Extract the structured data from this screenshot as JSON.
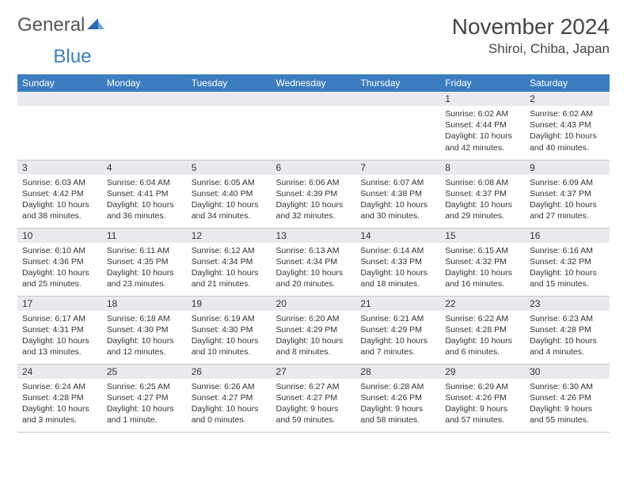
{
  "logo": {
    "text1": "General",
    "text2": "Blue"
  },
  "title": "November 2024",
  "location": "Shiroi, Chiba, Japan",
  "day_headers": [
    "Sunday",
    "Monday",
    "Tuesday",
    "Wednesday",
    "Thursday",
    "Friday",
    "Saturday"
  ],
  "colors": {
    "header_bg": "#3b7dbf",
    "header_fg": "#ffffff",
    "dayrow_bg": "#e8eaed",
    "border": "#c8c8c8",
    "text": "#333333"
  },
  "weeks": [
    [
      {
        "n": "",
        "lines": [
          "",
          "",
          "",
          ""
        ]
      },
      {
        "n": "",
        "lines": [
          "",
          "",
          "",
          ""
        ]
      },
      {
        "n": "",
        "lines": [
          "",
          "",
          "",
          ""
        ]
      },
      {
        "n": "",
        "lines": [
          "",
          "",
          "",
          ""
        ]
      },
      {
        "n": "",
        "lines": [
          "",
          "",
          "",
          ""
        ]
      },
      {
        "n": "1",
        "lines": [
          "Sunrise: 6:02 AM",
          "Sunset: 4:44 PM",
          "Daylight: 10 hours",
          "and 42 minutes."
        ]
      },
      {
        "n": "2",
        "lines": [
          "Sunrise: 6:02 AM",
          "Sunset: 4:43 PM",
          "Daylight: 10 hours",
          "and 40 minutes."
        ]
      }
    ],
    [
      {
        "n": "3",
        "lines": [
          "Sunrise: 6:03 AM",
          "Sunset: 4:42 PM",
          "Daylight: 10 hours",
          "and 38 minutes."
        ]
      },
      {
        "n": "4",
        "lines": [
          "Sunrise: 6:04 AM",
          "Sunset: 4:41 PM",
          "Daylight: 10 hours",
          "and 36 minutes."
        ]
      },
      {
        "n": "5",
        "lines": [
          "Sunrise: 6:05 AM",
          "Sunset: 4:40 PM",
          "Daylight: 10 hours",
          "and 34 minutes."
        ]
      },
      {
        "n": "6",
        "lines": [
          "Sunrise: 6:06 AM",
          "Sunset: 4:39 PM",
          "Daylight: 10 hours",
          "and 32 minutes."
        ]
      },
      {
        "n": "7",
        "lines": [
          "Sunrise: 6:07 AM",
          "Sunset: 4:38 PM",
          "Daylight: 10 hours",
          "and 30 minutes."
        ]
      },
      {
        "n": "8",
        "lines": [
          "Sunrise: 6:08 AM",
          "Sunset: 4:37 PM",
          "Daylight: 10 hours",
          "and 29 minutes."
        ]
      },
      {
        "n": "9",
        "lines": [
          "Sunrise: 6:09 AM",
          "Sunset: 4:37 PM",
          "Daylight: 10 hours",
          "and 27 minutes."
        ]
      }
    ],
    [
      {
        "n": "10",
        "lines": [
          "Sunrise: 6:10 AM",
          "Sunset: 4:36 PM",
          "Daylight: 10 hours",
          "and 25 minutes."
        ]
      },
      {
        "n": "11",
        "lines": [
          "Sunrise: 6:11 AM",
          "Sunset: 4:35 PM",
          "Daylight: 10 hours",
          "and 23 minutes."
        ]
      },
      {
        "n": "12",
        "lines": [
          "Sunrise: 6:12 AM",
          "Sunset: 4:34 PM",
          "Daylight: 10 hours",
          "and 21 minutes."
        ]
      },
      {
        "n": "13",
        "lines": [
          "Sunrise: 6:13 AM",
          "Sunset: 4:34 PM",
          "Daylight: 10 hours",
          "and 20 minutes."
        ]
      },
      {
        "n": "14",
        "lines": [
          "Sunrise: 6:14 AM",
          "Sunset: 4:33 PM",
          "Daylight: 10 hours",
          "and 18 minutes."
        ]
      },
      {
        "n": "15",
        "lines": [
          "Sunrise: 6:15 AM",
          "Sunset: 4:32 PM",
          "Daylight: 10 hours",
          "and 16 minutes."
        ]
      },
      {
        "n": "16",
        "lines": [
          "Sunrise: 6:16 AM",
          "Sunset: 4:32 PM",
          "Daylight: 10 hours",
          "and 15 minutes."
        ]
      }
    ],
    [
      {
        "n": "17",
        "lines": [
          "Sunrise: 6:17 AM",
          "Sunset: 4:31 PM",
          "Daylight: 10 hours",
          "and 13 minutes."
        ]
      },
      {
        "n": "18",
        "lines": [
          "Sunrise: 6:18 AM",
          "Sunset: 4:30 PM",
          "Daylight: 10 hours",
          "and 12 minutes."
        ]
      },
      {
        "n": "19",
        "lines": [
          "Sunrise: 6:19 AM",
          "Sunset: 4:30 PM",
          "Daylight: 10 hours",
          "and 10 minutes."
        ]
      },
      {
        "n": "20",
        "lines": [
          "Sunrise: 6:20 AM",
          "Sunset: 4:29 PM",
          "Daylight: 10 hours",
          "and 8 minutes."
        ]
      },
      {
        "n": "21",
        "lines": [
          "Sunrise: 6:21 AM",
          "Sunset: 4:29 PM",
          "Daylight: 10 hours",
          "and 7 minutes."
        ]
      },
      {
        "n": "22",
        "lines": [
          "Sunrise: 6:22 AM",
          "Sunset: 4:28 PM",
          "Daylight: 10 hours",
          "and 6 minutes."
        ]
      },
      {
        "n": "23",
        "lines": [
          "Sunrise: 6:23 AM",
          "Sunset: 4:28 PM",
          "Daylight: 10 hours",
          "and 4 minutes."
        ]
      }
    ],
    [
      {
        "n": "24",
        "lines": [
          "Sunrise: 6:24 AM",
          "Sunset: 4:28 PM",
          "Daylight: 10 hours",
          "and 3 minutes."
        ]
      },
      {
        "n": "25",
        "lines": [
          "Sunrise: 6:25 AM",
          "Sunset: 4:27 PM",
          "Daylight: 10 hours",
          "and 1 minute."
        ]
      },
      {
        "n": "26",
        "lines": [
          "Sunrise: 6:26 AM",
          "Sunset: 4:27 PM",
          "Daylight: 10 hours",
          "and 0 minutes."
        ]
      },
      {
        "n": "27",
        "lines": [
          "Sunrise: 6:27 AM",
          "Sunset: 4:27 PM",
          "Daylight: 9 hours",
          "and 59 minutes."
        ]
      },
      {
        "n": "28",
        "lines": [
          "Sunrise: 6:28 AM",
          "Sunset: 4:26 PM",
          "Daylight: 9 hours",
          "and 58 minutes."
        ]
      },
      {
        "n": "29",
        "lines": [
          "Sunrise: 6:29 AM",
          "Sunset: 4:26 PM",
          "Daylight: 9 hours",
          "and 57 minutes."
        ]
      },
      {
        "n": "30",
        "lines": [
          "Sunrise: 6:30 AM",
          "Sunset: 4:26 PM",
          "Daylight: 9 hours",
          "and 55 minutes."
        ]
      }
    ]
  ]
}
